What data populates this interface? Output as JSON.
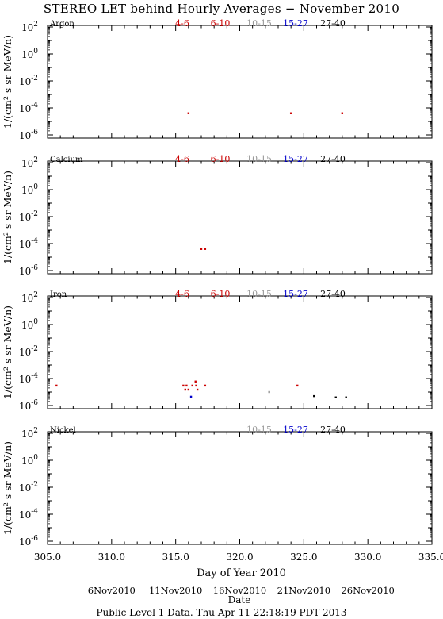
{
  "title": "STEREO LET behind Hourly Averages − November 2010",
  "footer": "Public Level 1 Data. Thu Apr 11 22:18:19 PDT 2013",
  "chart_data": {
    "type": "scatter",
    "xlim": [
      305.0,
      335.0
    ],
    "xticks": [
      "305.0",
      "310.0",
      "315.0",
      "320.0",
      "325.0",
      "330.0",
      "335.0"
    ],
    "xlabel": "Day of Year 2010",
    "date_axis": {
      "label": "Date",
      "ticks": [
        {
          "label": "6Nov2010",
          "doy": 310
        },
        {
          "label": "11Nov2010",
          "doy": 315
        },
        {
          "label": "16Nov2010",
          "doy": 320
        },
        {
          "label": "21Nov2010",
          "doy": 325
        },
        {
          "label": "26Nov2010",
          "doy": 330
        }
      ]
    },
    "ylabel": "1/(cm² s sr MeV/n)",
    "ylog": true,
    "ylim": [
      1e-06,
      100
    ],
    "yticks": [
      {
        "base": "10",
        "exp": "2",
        "value": 100
      },
      {
        "base": "10",
        "exp": "0",
        "value": 1
      },
      {
        "base": "10",
        "exp": "-2",
        "value": 0.01
      },
      {
        "base": "10",
        "exp": "-4",
        "value": 0.0001
      },
      {
        "base": "10",
        "exp": "-6",
        "value": 1e-06
      }
    ],
    "legend_colors": {
      "4-6": "#cc0000",
      "6-10": "#cc0000",
      "10-15": "#999999",
      "15-27": "#0000cc",
      "27-40": "#000000"
    },
    "panels": [
      {
        "element": "Argon",
        "legend": [
          "4-6",
          "6-10",
          "10-15",
          "15-27",
          "27-40"
        ],
        "series": [
          {
            "name": "4-6",
            "points": [
              [
                316.0,
                4e-05
              ],
              [
                324.0,
                4e-05
              ],
              [
                328.0,
                4e-05
              ]
            ]
          }
        ]
      },
      {
        "element": "Calcium",
        "legend": [
          "4-6",
          "6-10",
          "10-15",
          "15-27",
          "27-40"
        ],
        "series": [
          {
            "name": "4-6",
            "points": [
              [
                317.0,
                4e-05
              ],
              [
                317.3,
                4e-05
              ]
            ]
          }
        ]
      },
      {
        "element": "Iron",
        "legend": [
          "4-6",
          "6-10",
          "10-15",
          "15-27",
          "27-40"
        ],
        "series": [
          {
            "name": "4-6",
            "points": [
              [
                305.7,
                3e-05
              ],
              [
                315.6,
                3e-05
              ],
              [
                315.75,
                1.5e-05
              ],
              [
                315.85,
                3e-05
              ],
              [
                316.0,
                1.5e-05
              ],
              [
                316.3,
                3e-05
              ],
              [
                316.55,
                6e-05
              ],
              [
                316.6,
                3e-05
              ],
              [
                316.7,
                1.5e-05
              ],
              [
                317.3,
                3e-05
              ],
              [
                324.5,
                3e-05
              ]
            ]
          },
          {
            "name": "10-15",
            "points": [
              [
                322.3,
                1e-05
              ]
            ]
          },
          {
            "name": "15-27",
            "points": [
              [
                316.2,
                4.5e-06
              ]
            ]
          },
          {
            "name": "27-40",
            "points": [
              [
                325.8,
                5e-06
              ],
              [
                327.5,
                4e-06
              ],
              [
                328.3,
                4e-06
              ]
            ]
          }
        ]
      },
      {
        "element": "Nickel",
        "legend": [
          "10-15",
          "15-27",
          "27-40"
        ],
        "series": []
      }
    ]
  }
}
